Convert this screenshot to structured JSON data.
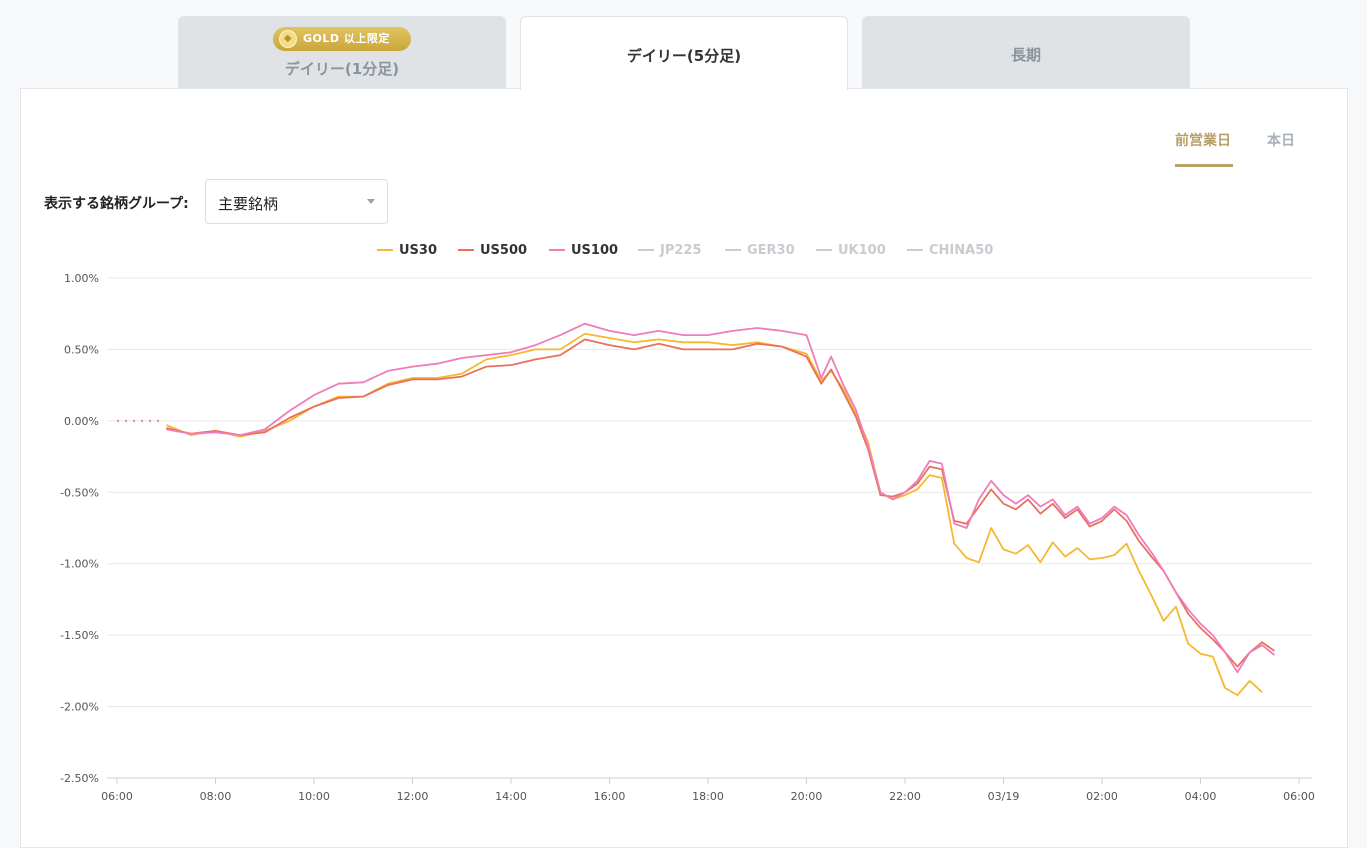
{
  "tabs": [
    {
      "label": "デイリー(1分足)",
      "badge": "GOLD 以上限定",
      "state": "inactive"
    },
    {
      "label": "デイリー(5分足)",
      "state": "active"
    },
    {
      "label": "長期",
      "state": "inactive"
    }
  ],
  "period_toggle": {
    "previous": "前営業日",
    "today": "本日",
    "selected": "前営業日"
  },
  "group_select": {
    "label": "表示する銘柄グループ:",
    "value": "主要銘柄"
  },
  "colors": {
    "accent": "#b7a06a",
    "US30": "#f5b82e",
    "US500": "#e8705e",
    "US100": "#ee7db8",
    "disabled": "#cccccc"
  },
  "chart_data": {
    "type": "line",
    "title": "",
    "xlabel": "",
    "ylabel": "",
    "ylim": [
      -2.5,
      1.0
    ],
    "y_ticks": [
      "1.00%",
      "0.50%",
      "0.00%",
      "-0.50%",
      "-1.00%",
      "-1.50%",
      "-2.00%",
      "-2.50%"
    ],
    "x_ticks": [
      "06:00",
      "08:00",
      "10:00",
      "12:00",
      "14:00",
      "16:00",
      "18:00",
      "20:00",
      "22:00",
      "03/19",
      "02:00",
      "04:00",
      "06:00"
    ],
    "x_range_hours": [
      6,
      30
    ],
    "grid": true,
    "legend_placement": "top-center",
    "x_hours": [
      6.0,
      7.0,
      7.5,
      8.0,
      8.5,
      9.0,
      9.5,
      10.0,
      10.5,
      11.0,
      11.5,
      12.0,
      12.5,
      13.0,
      13.5,
      14.0,
      14.5,
      15.0,
      15.5,
      16.0,
      16.5,
      17.0,
      17.5,
      18.0,
      18.5,
      19.0,
      19.5,
      20.0,
      20.3,
      20.5,
      20.75,
      21.0,
      21.25,
      21.5,
      21.75,
      22.0,
      22.25,
      22.5,
      22.75,
      23.0,
      23.25,
      23.5,
      23.75,
      24.0,
      24.25,
      24.5,
      24.75,
      25.0,
      25.25,
      25.5,
      25.75,
      26.0,
      26.25,
      26.5,
      26.75,
      27.0,
      27.25,
      27.5,
      27.75,
      28.0,
      28.25,
      28.5,
      28.75,
      29.0,
      29.25,
      29.5,
      29.75,
      30.0
    ],
    "series": [
      {
        "name": "US30",
        "values": [
          null,
          -0.03,
          -0.1,
          -0.07,
          -0.11,
          -0.07,
          0.0,
          0.1,
          0.17,
          0.17,
          0.26,
          0.3,
          0.3,
          0.33,
          0.43,
          0.46,
          0.5,
          0.5,
          0.61,
          0.58,
          0.55,
          0.57,
          0.55,
          0.55,
          0.53,
          0.55,
          0.52,
          0.47,
          0.28,
          0.35,
          0.22,
          0.05,
          -0.15,
          -0.5,
          -0.55,
          -0.52,
          -0.48,
          -0.38,
          -0.4,
          -0.86,
          -0.96,
          -0.99,
          -0.75,
          -0.9,
          -0.93,
          -0.87,
          -0.99,
          -0.85,
          -0.95,
          -0.89,
          -0.97,
          -0.96,
          -0.94,
          -0.86,
          -1.05,
          -1.22,
          -1.4,
          -1.3,
          -1.56,
          -1.63,
          -1.65,
          -1.87,
          -1.92,
          -1.82,
          -1.9,
          null,
          null,
          null
        ]
      },
      {
        "name": "US500",
        "values": [
          null,
          -0.05,
          -0.09,
          -0.07,
          -0.1,
          -0.08,
          0.02,
          0.1,
          0.16,
          0.17,
          0.25,
          0.29,
          0.29,
          0.31,
          0.38,
          0.39,
          0.43,
          0.46,
          0.57,
          0.53,
          0.5,
          0.54,
          0.5,
          0.5,
          0.5,
          0.54,
          0.52,
          0.45,
          0.26,
          0.36,
          0.2,
          0.03,
          -0.2,
          -0.52,
          -0.53,
          -0.5,
          -0.44,
          -0.32,
          -0.34,
          -0.7,
          -0.72,
          -0.6,
          -0.48,
          -0.58,
          -0.62,
          -0.55,
          -0.65,
          -0.58,
          -0.68,
          -0.62,
          -0.74,
          -0.7,
          -0.62,
          -0.7,
          -0.84,
          -0.95,
          -1.05,
          -1.2,
          -1.35,
          -1.45,
          -1.53,
          -1.62,
          -1.72,
          -1.62,
          -1.55,
          -1.61,
          null,
          null
        ]
      },
      {
        "name": "US100",
        "values": [
          null,
          -0.06,
          -0.09,
          -0.08,
          -0.1,
          -0.06,
          0.07,
          0.18,
          0.26,
          0.27,
          0.35,
          0.38,
          0.4,
          0.44,
          0.46,
          0.48,
          0.53,
          0.6,
          0.68,
          0.63,
          0.6,
          0.63,
          0.6,
          0.6,
          0.63,
          0.65,
          0.63,
          0.6,
          0.3,
          0.45,
          0.25,
          0.08,
          -0.18,
          -0.5,
          -0.55,
          -0.5,
          -0.42,
          -0.28,
          -0.3,
          -0.72,
          -0.75,
          -0.55,
          -0.42,
          -0.52,
          -0.58,
          -0.52,
          -0.6,
          -0.55,
          -0.66,
          -0.6,
          -0.72,
          -0.68,
          -0.6,
          -0.66,
          -0.8,
          -0.92,
          -1.05,
          -1.2,
          -1.32,
          -1.42,
          -1.5,
          -1.62,
          -1.76,
          -1.62,
          -1.57,
          -1.64,
          null,
          null
        ]
      },
      {
        "name": "JP225",
        "values": [],
        "disabled": true
      },
      {
        "name": "GER30",
        "values": [],
        "disabled": true
      },
      {
        "name": "UK100",
        "values": [],
        "disabled": true
      },
      {
        "name": "CHINA50",
        "values": [],
        "disabled": true
      }
    ]
  }
}
